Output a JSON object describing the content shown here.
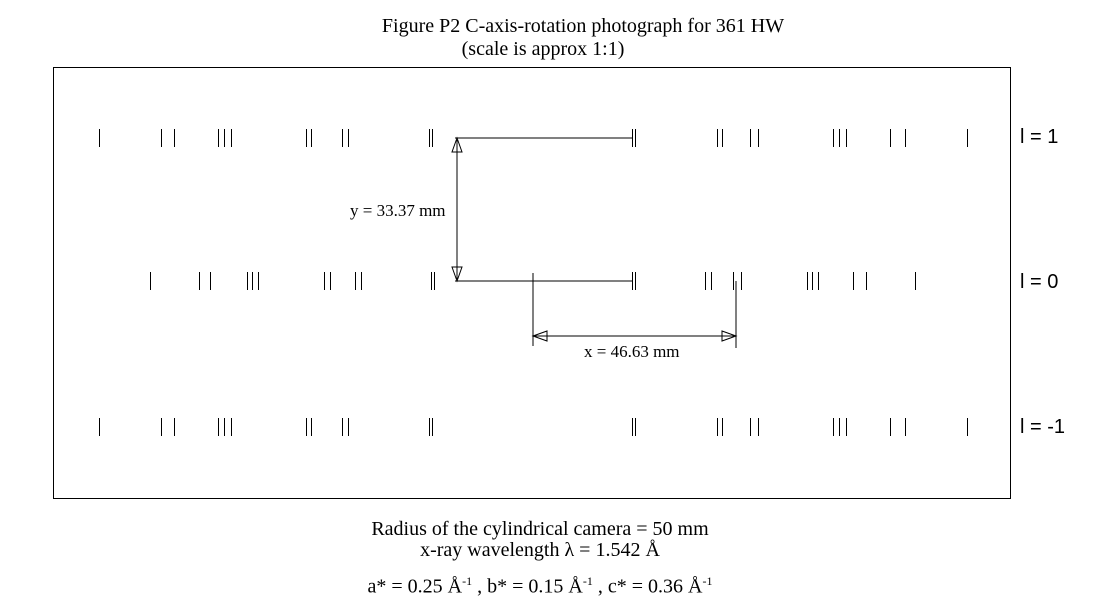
{
  "figure": {
    "title_line1": "Figure P2   C-axis-rotation photograph for 361 HW",
    "title_line2": "(scale is approx 1:1)"
  },
  "rows": [
    {
      "label": "l = 1"
    },
    {
      "label": "l = 0"
    },
    {
      "label": "l = -1"
    }
  ],
  "annotations": {
    "y_text": "y = 33.37 mm",
    "x_text": "x = 46.63 mm"
  },
  "caption": {
    "line1": "Radius of the cylindrical camera = 50 mm",
    "line2": "x-ray wavelength λ = 1.542 Å",
    "line3_a": "a* = 0.25 Å",
    "line3_b": " , b* = 0.15 Å",
    "line3_c": " , c* = 0.36 Å",
    "sup": "-1"
  }
}
